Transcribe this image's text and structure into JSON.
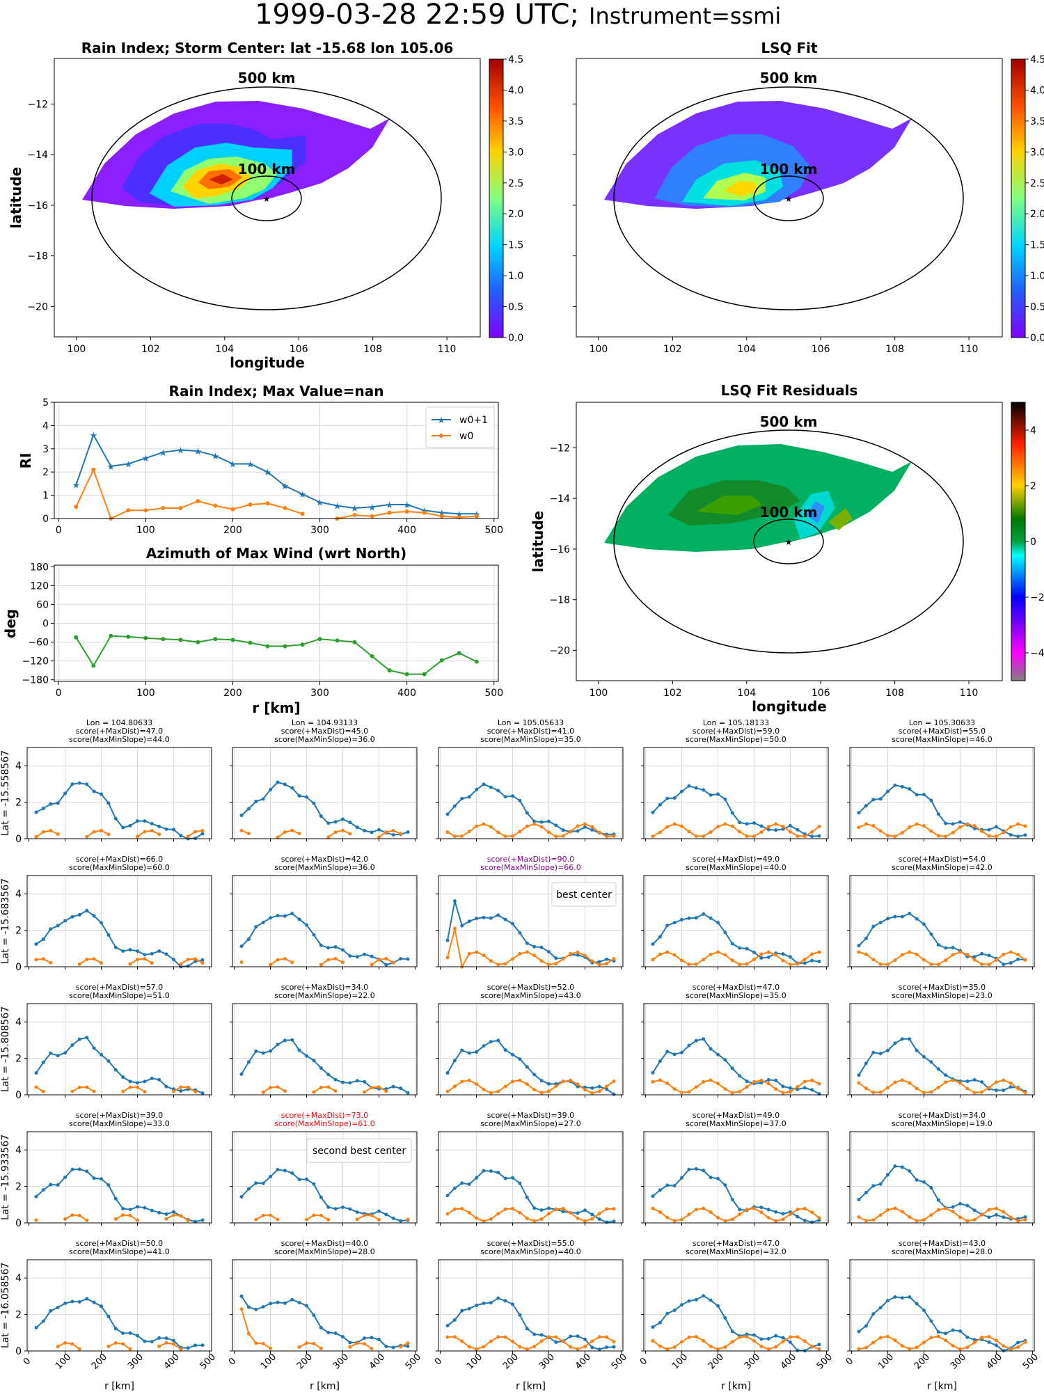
{
  "title": {
    "datetime": "1999-03-28 22:59 UTC;",
    "instrument": "Instrument=ssmi"
  },
  "colors": {
    "blue": "#1f77b4",
    "orange": "#ff7f0e",
    "green": "#2ca02c",
    "best": "#800080",
    "second": "#ff0000",
    "grid": "#d9d9d9"
  },
  "maps": {
    "rain_index": {
      "title": "Rain Index; Storm Center: lat -15.68 lon 105.06",
      "xlabel": "longitude",
      "ylabel": "latitude",
      "center": [
        105.06,
        -15.68
      ],
      "ring_labels": [
        "500 km",
        "100 km"
      ],
      "xticks": [
        100,
        102,
        104,
        106,
        108,
        110
      ],
      "yticks": [
        -12,
        -14,
        -16,
        -18,
        -20
      ],
      "xlim": [
        99.4,
        110.9
      ],
      "ylim": [
        -21.2,
        -10.2
      ],
      "colorbar": {
        "ticks": [
          "0.0",
          "0.5",
          "1.0",
          "1.5",
          "2.0",
          "2.5",
          "3.0",
          "3.5",
          "4.0",
          "4.5"
        ],
        "range": [
          0,
          4.5
        ],
        "cmap": "rainbow"
      }
    },
    "lsq_fit": {
      "title": "LSQ Fit",
      "ring_labels": [
        "500 km",
        "100 km"
      ],
      "xticks": [
        100,
        102,
        104,
        106,
        108,
        110
      ],
      "xlabel": "",
      "colorbar": {
        "ticks": [
          "0.0",
          "0.5",
          "1.0",
          "1.5",
          "2.0",
          "2.5",
          "3.0",
          "3.5",
          "4.0",
          "4.5"
        ],
        "range": [
          0,
          4.5
        ],
        "cmap": "rainbow"
      }
    },
    "residuals": {
      "title": "LSQ Fit Residuals",
      "xlabel": "longitude",
      "ylabel": "latitude",
      "ring_labels": [
        "500 km",
        "100 km"
      ],
      "xticks": [
        100,
        102,
        104,
        106,
        108,
        110
      ],
      "yticks": [
        -12,
        -14,
        -16,
        -18,
        -20
      ],
      "colorbar": {
        "ticks": [
          "4",
          "2",
          "0",
          "−2",
          "−4"
        ],
        "range": [
          -5,
          5
        ],
        "cmap": "residual"
      }
    }
  },
  "chart_data": [
    {
      "type": "line",
      "title": "Rain Index; Max Value=nan",
      "ylabel": "RI",
      "xlim": [
        -5,
        505
      ],
      "ylim": [
        0,
        5
      ],
      "xticks": [
        "0",
        "100",
        "200",
        "300",
        "400",
        "500"
      ],
      "yticks": [
        "0",
        "1",
        "2",
        "3",
        "4",
        "5"
      ],
      "x": [
        20,
        40,
        60,
        80,
        100,
        120,
        140,
        160,
        180,
        200,
        220,
        240,
        260,
        280,
        300,
        320,
        340,
        360,
        380,
        400,
        420,
        440,
        460,
        480
      ],
      "series": [
        {
          "name": "w0+1",
          "marker": "star",
          "values": [
            1.45,
            3.6,
            2.25,
            2.35,
            2.6,
            2.85,
            2.95,
            2.9,
            2.7,
            2.35,
            2.35,
            2.0,
            1.4,
            1.05,
            0.7,
            0.55,
            0.45,
            0.5,
            0.6,
            0.6,
            0.35,
            0.25,
            0.2,
            0.2
          ]
        },
        {
          "name": "w0",
          "marker": "dot",
          "values": [
            0.5,
            2.1,
            0.0,
            0.35,
            0.35,
            0.45,
            0.45,
            0.75,
            0.55,
            0.4,
            0.6,
            0.65,
            0.45,
            0.2,
            null,
            0.0,
            0.15,
            0.1,
            0.25,
            0.3,
            0.25,
            0.1,
            0.05,
            0.1
          ]
        }
      ],
      "legend": "top-right"
    },
    {
      "type": "line",
      "title": "Azimuth of Max Wind (wrt North)",
      "ylabel": "deg",
      "xlabel": "r [km]",
      "xlim": [
        -5,
        505
      ],
      "ylim": [
        -185,
        185
      ],
      "xticks": [
        "0",
        "100",
        "200",
        "300",
        "400",
        "500"
      ],
      "yticks": [
        "180",
        "120",
        "60",
        "0",
        "−60",
        "−120",
        "−180"
      ],
      "x": [
        20,
        40,
        60,
        80,
        100,
        120,
        140,
        160,
        180,
        200,
        220,
        240,
        260,
        280,
        300,
        320,
        340,
        360,
        380,
        400,
        420,
        440,
        460,
        480
      ],
      "series": [
        {
          "name": "",
          "values": [
            -45,
            -135,
            -40,
            -43,
            -47,
            -50,
            -53,
            -60,
            -50,
            -53,
            -62,
            -73,
            -73,
            -68,
            -50,
            -55,
            -60,
            -105,
            -150,
            -162,
            -162,
            -118,
            -95,
            -122
          ]
        }
      ]
    },
    {
      "type": "line",
      "grid_rows": 5,
      "grid_cols": 5,
      "ylim": [
        0,
        5
      ],
      "xlim": [
        -5,
        505
      ],
      "xlabel": "r [km]",
      "xticks": [
        "0",
        "100",
        "200",
        "300",
        "400",
        "500"
      ],
      "yticks": [
        "0",
        "2",
        "4"
      ],
      "row_labels": [
        "Lat = -15.558567",
        "Lat = -15.683567",
        "Lat = -15.808567",
        "Lat = -15.933567",
        "Lat = -16.058567"
      ],
      "col_lons": [
        "Lon = 104.80633",
        "Lon = 104.93133",
        "Lon = 105.05633",
        "Lon = 105.18133",
        "Lon = 105.30633"
      ],
      "best_label": "best center",
      "second_label": "second best center",
      "cells": [
        [
          {
            "s1": "score(+MaxDist)=47.0",
            "s2": "score(MaxMinSlope)=44.0"
          },
          {
            "s1": "score(+MaxDist)=45.0",
            "s2": "score(MaxMinSlope)=36.0"
          },
          {
            "s1": "score(+MaxDist)=41.0",
            "s2": "score(MaxMinSlope)=35.0"
          },
          {
            "s1": "score(+MaxDist)=59.0",
            "s2": "score(MaxMinSlope)=50.0"
          },
          {
            "s1": "score(+MaxDist)=55.0",
            "s2": "score(MaxMinSlope)=46.0"
          }
        ],
        [
          {
            "s1": "score(+MaxDist)=66.0",
            "s2": "score(MaxMinSlope)=60.0"
          },
          {
            "s1": "score(+MaxDist)=42.0",
            "s2": "score(MaxMinSlope)=36.0"
          },
          {
            "s1": "score(+MaxDist)=90.0",
            "s2": "score(MaxMinSlope)=66.0",
            "highlight": "best"
          },
          {
            "s1": "score(+MaxDist)=49.0",
            "s2": "score(MaxMinSlope)=40.0"
          },
          {
            "s1": "score(+MaxDist)=54.0",
            "s2": "score(MaxMinSlope)=42.0"
          }
        ],
        [
          {
            "s1": "score(+MaxDist)=57.0",
            "s2": "score(MaxMinSlope)=51.0"
          },
          {
            "s1": "score(+MaxDist)=34.0",
            "s2": "score(MaxMinSlope)=22.0"
          },
          {
            "s1": "score(+MaxDist)=52.0",
            "s2": "score(MaxMinSlope)=43.0"
          },
          {
            "s1": "score(+MaxDist)=47.0",
            "s2": "score(MaxMinSlope)=35.0"
          },
          {
            "s1": "score(+MaxDist)=35.0",
            "s2": "score(MaxMinSlope)=23.0"
          }
        ],
        [
          {
            "s1": "score(+MaxDist)=39.0",
            "s2": "score(MaxMinSlope)=33.0"
          },
          {
            "s1": "score(+MaxDist)=73.0",
            "s2": "score(MaxMinSlope)=61.0",
            "highlight": "second"
          },
          {
            "s1": "score(+MaxDist)=39.0",
            "s2": "score(MaxMinSlope)=27.0"
          },
          {
            "s1": "score(+MaxDist)=49.0",
            "s2": "score(MaxMinSlope)=37.0"
          },
          {
            "s1": "score(+MaxDist)=34.0",
            "s2": "score(MaxMinSlope)=19.0"
          }
        ],
        [
          {
            "s1": "score(+MaxDist)=50.0",
            "s2": "score(MaxMinSlope)=41.0"
          },
          {
            "s1": "score(+MaxDist)=40.0",
            "s2": "score(MaxMinSlope)=28.0"
          },
          {
            "s1": "score(+MaxDist)=55.0",
            "s2": "score(MaxMinSlope)=40.0"
          },
          {
            "s1": "score(+MaxDist)=47.0",
            "s2": "score(MaxMinSlope)=32.0"
          },
          {
            "s1": "score(+MaxDist)=43.0",
            "s2": "score(MaxMinSlope)=28.0"
          }
        ]
      ]
    }
  ]
}
